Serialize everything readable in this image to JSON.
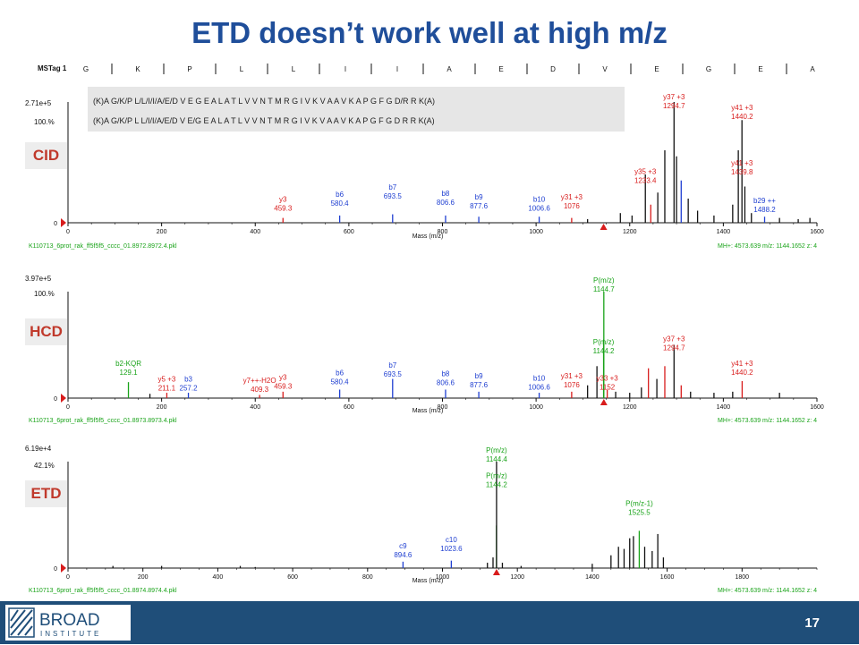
{
  "slide": {
    "title": "ETD doesn’t work well at high m/z",
    "page_number": "17"
  },
  "logo": {
    "line1": "BROAD",
    "line2": "INSTITUTE"
  },
  "colors": {
    "title": "#1f4e9a",
    "label_text": "#c0392b",
    "footer": "#1f4e79",
    "b_ion": "#1f3fd1",
    "y_ion": "#d81c1c",
    "precursor": "#19a319",
    "peak": "#111111"
  },
  "sequence_bar": {
    "label": "MSTag 1",
    "residues": [
      "G",
      "K",
      "P",
      "L",
      "L",
      "I",
      "I",
      "A",
      "E",
      "D",
      "V",
      "E",
      "G",
      "E",
      "A"
    ]
  },
  "sequence_box": {
    "line1": "(K)A G/K/P L/L/I/I/A/E/D V E G E A L A T L V V N T M R G I V K V A A V K A P G F G D/R R K(A)",
    "line2": "(K)A G/K/P L L/I/I/A/E/D V E/G E A L A T L V V N T M R G I V K V A A V K A P G F G D R R K(A)"
  },
  "chart_data": [
    {
      "type": "bar",
      "method": "CID",
      "max_intensity": "2.71e+5",
      "rel_percent": "100.%",
      "xlabel": "Mass (m/z)",
      "xlim": [
        0,
        1600
      ],
      "xticks": [
        0,
        200,
        400,
        600,
        800,
        1000,
        1200,
        1400,
        1600
      ],
      "footer_left": "K110713_6prot_rak_ff5f5f5_cccc_01.8972.8972.4.pkl",
      "footer_right": "MH+: 4573.639   m/z: 1144.1652   z: 4",
      "precursor_mz": 1144.2,
      "annotations": [
        {
          "ion": "y3",
          "sup": "",
          "mz": "459.3",
          "x": 459.3,
          "y": 0.1,
          "color": "y"
        },
        {
          "ion": "b6",
          "sup": "",
          "mz": "580.4",
          "x": 580.4,
          "y": 0.14,
          "color": "b"
        },
        {
          "ion": "b7",
          "sup": "",
          "mz": "693.5",
          "x": 693.5,
          "y": 0.2,
          "color": "b"
        },
        {
          "ion": "b8",
          "sup": "",
          "mz": "806.6",
          "x": 806.6,
          "y": 0.15,
          "color": "b"
        },
        {
          "ion": "b9",
          "sup": "",
          "mz": "877.6",
          "x": 877.6,
          "y": 0.12,
          "color": "b"
        },
        {
          "ion": "b10",
          "sup": "",
          "mz": "1006.6",
          "x": 1006.6,
          "y": 0.1,
          "color": "b"
        },
        {
          "ion": "y31",
          "sup": "+3",
          "mz": "1076",
          "x": 1076,
          "y": 0.12,
          "color": "y"
        },
        {
          "ion": "y35",
          "sup": "+3",
          "mz": "1233.4",
          "x": 1233.4,
          "y": 0.33,
          "color": "y"
        },
        {
          "ion": "y37",
          "sup": "+3",
          "mz": "1294.7",
          "x": 1294.7,
          "y": 0.95,
          "color": "y"
        },
        {
          "ion": "y41",
          "sup": "+3",
          "mz": "1440.2",
          "x": 1440.2,
          "y": 0.86,
          "color": "y"
        },
        {
          "ion": "y41",
          "sup": "+3",
          "mz": "1439.8",
          "x": 1439.8,
          "y": 0.4,
          "color": "y"
        },
        {
          "ion": "b29",
          "sup": "++",
          "mz": "1488.2",
          "x": 1488.2,
          "y": 0.09,
          "color": "b"
        }
      ],
      "peaks": [
        [
          459.3,
          0.04,
          "y"
        ],
        [
          580.4,
          0.06,
          "b"
        ],
        [
          693.5,
          0.07,
          "b"
        ],
        [
          806.6,
          0.06,
          "b"
        ],
        [
          877.6,
          0.05,
          "b"
        ],
        [
          1006.6,
          0.05,
          "b"
        ],
        [
          1076,
          0.04,
          "y"
        ],
        [
          1110,
          0.03,
          "k"
        ],
        [
          1180,
          0.08,
          "k"
        ],
        [
          1205,
          0.06,
          "k"
        ],
        [
          1233.4,
          0.4,
          "k"
        ],
        [
          1245,
          0.15,
          "y"
        ],
        [
          1260,
          0.25,
          "k"
        ],
        [
          1275,
          0.6,
          "k"
        ],
        [
          1294.7,
          1.0,
          "k"
        ],
        [
          1300,
          0.55,
          "k"
        ],
        [
          1310,
          0.35,
          "b"
        ],
        [
          1325,
          0.2,
          "k"
        ],
        [
          1345,
          0.1,
          "k"
        ],
        [
          1380,
          0.06,
          "k"
        ],
        [
          1420,
          0.15,
          "k"
        ],
        [
          1432,
          0.6,
          "k"
        ],
        [
          1439.8,
          0.85,
          "k"
        ],
        [
          1446,
          0.3,
          "k"
        ],
        [
          1460,
          0.08,
          "k"
        ],
        [
          1488.2,
          0.05,
          "b"
        ],
        [
          1520,
          0.04,
          "k"
        ],
        [
          1560,
          0.03,
          "k"
        ],
        [
          1585,
          0.04,
          "k"
        ]
      ]
    },
    {
      "type": "bar",
      "method": "HCD",
      "max_intensity": "3.97e+5",
      "rel_percent": "100.%",
      "xlabel": "Mass (m/z)",
      "xlim": [
        0,
        1600
      ],
      "xticks": [
        0,
        200,
        400,
        600,
        800,
        1000,
        1200,
        1400,
        1600
      ],
      "footer_left": "K110713_6prot_rak_ff5f5f5_cccc_01.8973.8973.4.pkl",
      "footer_right": "MH+: 4573.639   m/z: 1144.1652   z: 4",
      "precursor_mz": 1144.7,
      "annotations": [
        {
          "ion": "b2-KQR",
          "sup": "",
          "mz": "129.1",
          "x": 129.1,
          "y": 0.22,
          "color": "p"
        },
        {
          "ion": "y5",
          "sup": "+3",
          "mz": "211.1",
          "x": 211.1,
          "y": 0.07,
          "color": "y"
        },
        {
          "ion": "b3",
          "sup": "",
          "mz": "257.2",
          "x": 257.2,
          "y": 0.07,
          "color": "b"
        },
        {
          "ion": "y7++-H2O",
          "sup": "",
          "mz": "409.3",
          "x": 409.3,
          "y": 0.06,
          "color": "y"
        },
        {
          "ion": "y3",
          "sup": "",
          "mz": "459.3",
          "x": 459.3,
          "y": 0.09,
          "color": "y"
        },
        {
          "ion": "b6",
          "sup": "",
          "mz": "580.4",
          "x": 580.4,
          "y": 0.13,
          "color": "b"
        },
        {
          "ion": "b7",
          "sup": "",
          "mz": "693.5",
          "x": 693.5,
          "y": 0.2,
          "color": "b"
        },
        {
          "ion": "b8",
          "sup": "",
          "mz": "806.6",
          "x": 806.6,
          "y": 0.12,
          "color": "b"
        },
        {
          "ion": "b9",
          "sup": "",
          "mz": "877.6",
          "x": 877.6,
          "y": 0.1,
          "color": "b"
        },
        {
          "ion": "b10",
          "sup": "",
          "mz": "1006.6",
          "x": 1006.6,
          "y": 0.08,
          "color": "b"
        },
        {
          "ion": "y31",
          "sup": "+3",
          "mz": "1076",
          "x": 1076,
          "y": 0.1,
          "color": "y"
        },
        {
          "ion": "y33",
          "sup": "+3",
          "mz": "1152",
          "x": 1152,
          "y": 0.08,
          "color": "y"
        },
        {
          "ion": "P(m/z)",
          "sup": "",
          "mz": "1144.7",
          "x": 1144.7,
          "y": 1.0,
          "color": "p"
        },
        {
          "ion": "P(m/z)",
          "sup": "",
          "mz": "1144.2",
          "x": 1144.2,
          "y": 0.42,
          "color": "p"
        },
        {
          "ion": "y37",
          "sup": "+3",
          "mz": "1294.7",
          "x": 1294.7,
          "y": 0.45,
          "color": "y"
        },
        {
          "ion": "y41",
          "sup": "+3",
          "mz": "1440.2",
          "x": 1440.2,
          "y": 0.22,
          "color": "y"
        }
      ],
      "peaks": [
        [
          129.1,
          0.15,
          "p"
        ],
        [
          175,
          0.04,
          "k"
        ],
        [
          211.1,
          0.05,
          "y"
        ],
        [
          257.2,
          0.05,
          "b"
        ],
        [
          409.3,
          0.03,
          "y"
        ],
        [
          459.3,
          0.06,
          "y"
        ],
        [
          580.4,
          0.08,
          "b"
        ],
        [
          693.5,
          0.18,
          "b"
        ],
        [
          806.6,
          0.08,
          "b"
        ],
        [
          877.6,
          0.06,
          "b"
        ],
        [
          1006.6,
          0.05,
          "b"
        ],
        [
          1076,
          0.06,
          "y"
        ],
        [
          1110,
          0.12,
          "k"
        ],
        [
          1130,
          0.3,
          "k"
        ],
        [
          1144.2,
          0.55,
          "p"
        ],
        [
          1144.7,
          1.0,
          "p"
        ],
        [
          1152,
          0.08,
          "y"
        ],
        [
          1170,
          0.06,
          "k"
        ],
        [
          1200,
          0.05,
          "k"
        ],
        [
          1225,
          0.1,
          "k"
        ],
        [
          1240,
          0.28,
          "y"
        ],
        [
          1258,
          0.18,
          "k"
        ],
        [
          1275,
          0.3,
          "y"
        ],
        [
          1294.7,
          0.5,
          "k"
        ],
        [
          1310,
          0.12,
          "y"
        ],
        [
          1330,
          0.06,
          "k"
        ],
        [
          1380,
          0.05,
          "k"
        ],
        [
          1420,
          0.06,
          "k"
        ],
        [
          1440.2,
          0.16,
          "y"
        ],
        [
          1520,
          0.05,
          "k"
        ]
      ]
    },
    {
      "type": "bar",
      "method": "ETD",
      "max_intensity": "6.19e+4",
      "rel_percent": "42.1%",
      "xlabel": "Mass (m/z)",
      "xlim": [
        0,
        2000
      ],
      "xticks": [
        0,
        200,
        400,
        600,
        800,
        1000,
        1200,
        1400,
        1600,
        1800
      ],
      "footer_left": "K110713_6prot_rak_ff5f5f5_cccc_01.8974.8974.4.pkl",
      "footer_right": "MH+: 4573.639   m/z: 1144.1652   z: 4",
      "precursor_mz": 1144.4,
      "annotations": [
        {
          "ion": "c9",
          "sup": "",
          "mz": "894.6",
          "x": 894.6,
          "y": 0.1,
          "color": "b"
        },
        {
          "ion": "c10",
          "sup": "",
          "mz": "1023.6",
          "x": 1023.6,
          "y": 0.16,
          "color": "b"
        },
        {
          "ion": "P(m/z)",
          "sup": "",
          "mz": "1144.4",
          "x": 1144.4,
          "y": 1.0,
          "color": "p"
        },
        {
          "ion": "P(m/z)",
          "sup": "",
          "mz": "1144.2",
          "x": 1144.2,
          "y": 0.76,
          "color": "p"
        },
        {
          "ion": "P(m/z-1)",
          "sup": "",
          "mz": "1525.5",
          "x": 1525.5,
          "y": 0.5,
          "color": "p"
        }
      ],
      "peaks": [
        [
          120,
          0.02,
          "k"
        ],
        [
          250,
          0.02,
          "k"
        ],
        [
          460,
          0.02,
          "k"
        ],
        [
          500,
          0.01,
          "k"
        ],
        [
          894.6,
          0.06,
          "b"
        ],
        [
          1023.6,
          0.07,
          "b"
        ],
        [
          1120,
          0.05,
          "k"
        ],
        [
          1135,
          0.1,
          "k"
        ],
        [
          1144.2,
          0.4,
          "p"
        ],
        [
          1144.4,
          1.0,
          "k"
        ],
        [
          1160,
          0.05,
          "k"
        ],
        [
          1210,
          0.02,
          "k"
        ],
        [
          1400,
          0.04,
          "k"
        ],
        [
          1450,
          0.12,
          "k"
        ],
        [
          1470,
          0.2,
          "k"
        ],
        [
          1485,
          0.18,
          "k"
        ],
        [
          1500,
          0.28,
          "k"
        ],
        [
          1510,
          0.3,
          "k"
        ],
        [
          1525.5,
          0.35,
          "p"
        ],
        [
          1540,
          0.2,
          "k"
        ],
        [
          1560,
          0.16,
          "k"
        ],
        [
          1575,
          0.32,
          "k"
        ],
        [
          1590,
          0.1,
          "k"
        ]
      ]
    }
  ]
}
